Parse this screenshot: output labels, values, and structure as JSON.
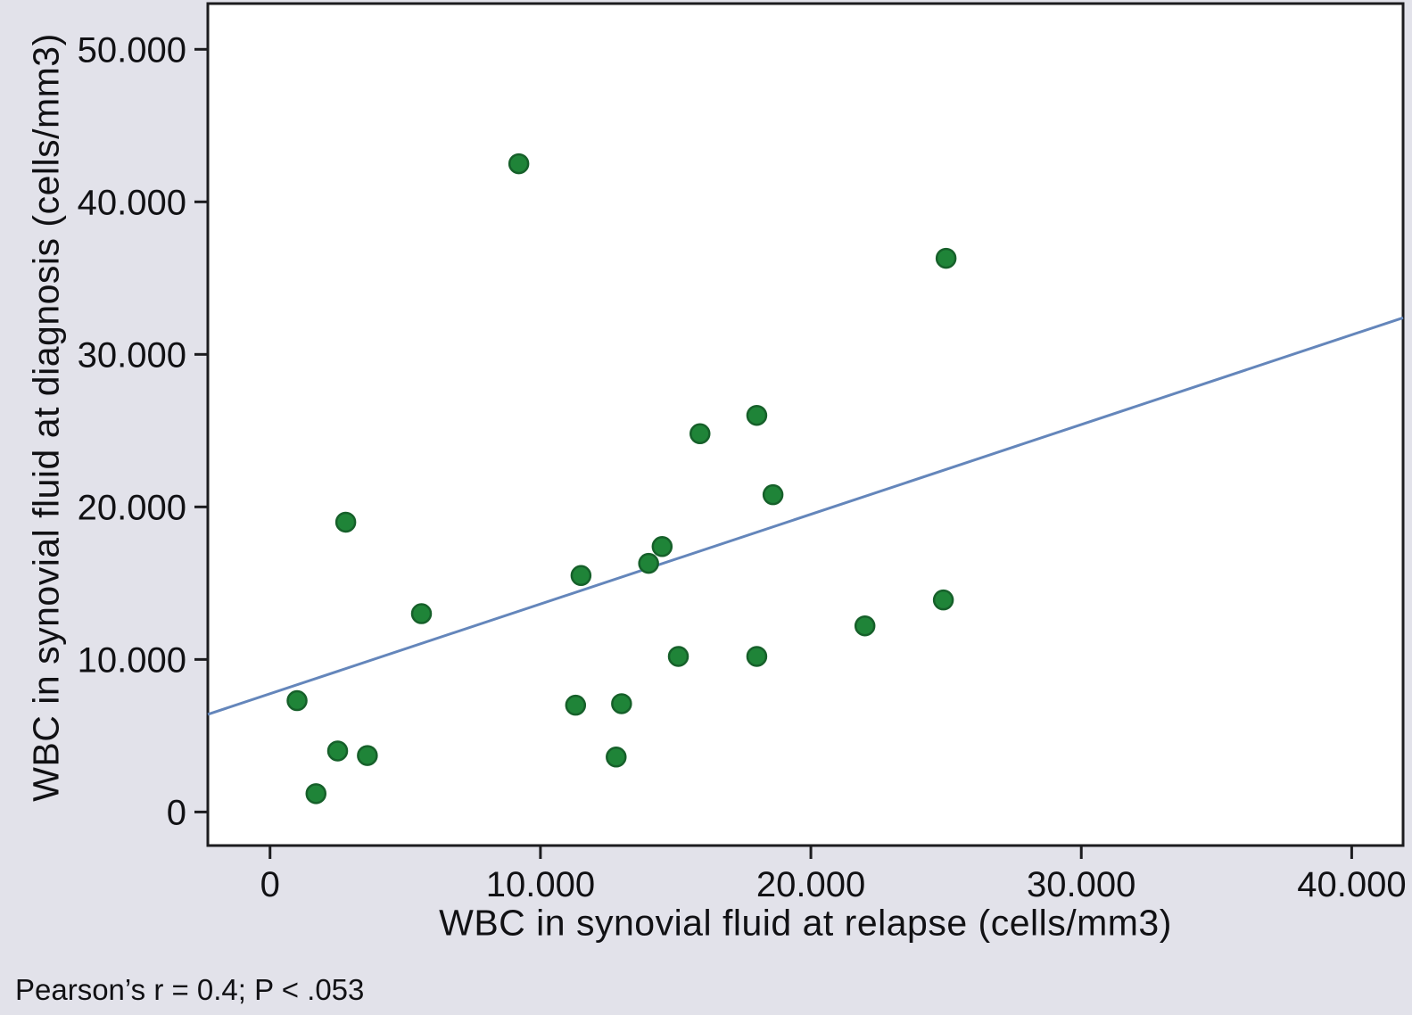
{
  "figure": {
    "background_color": "#e2e2ea",
    "plot_background_color": "#ffffff",
    "border_color": "#1c1c1f",
    "text_color": "#111114"
  },
  "chart_data": {
    "type": "scatter",
    "title": "",
    "xlabel": "WBC in synovial fluid at relapse (cells/mm3)",
    "ylabel": "WBC in synovial fluid at diagnosis (cells/mm3)",
    "annotation": "Pearson’s r = 0.4; P < .053",
    "grid": false,
    "legend_position": "none",
    "xlim": [
      -2300,
      41900
    ],
    "ylim": [
      -2200,
      53000
    ],
    "x_ticks": [
      {
        "value": 0,
        "label": "0"
      },
      {
        "value": 10000,
        "label": "10.000"
      },
      {
        "value": 20000,
        "label": "20.000"
      },
      {
        "value": 30000,
        "label": "30.000"
      },
      {
        "value": 40000,
        "label": "40.000"
      }
    ],
    "y_ticks": [
      {
        "value": 0,
        "label": "0"
      },
      {
        "value": 10000,
        "label": "10.000"
      },
      {
        "value": 20000,
        "label": "20.000"
      },
      {
        "value": 30000,
        "label": "30.000"
      },
      {
        "value": 40000,
        "label": "40.000"
      },
      {
        "value": 50000,
        "label": "50.000"
      }
    ],
    "points": [
      {
        "x": 9200,
        "y": 42500
      },
      {
        "x": 25000,
        "y": 36300
      },
      {
        "x": 18000,
        "y": 26000
      },
      {
        "x": 15900,
        "y": 24800
      },
      {
        "x": 18600,
        "y": 20800
      },
      {
        "x": 2800,
        "y": 19000
      },
      {
        "x": 14500,
        "y": 17400
      },
      {
        "x": 14000,
        "y": 16300
      },
      {
        "x": 11500,
        "y": 15500
      },
      {
        "x": 24900,
        "y": 13900
      },
      {
        "x": 5600,
        "y": 13000
      },
      {
        "x": 22000,
        "y": 12200
      },
      {
        "x": 15100,
        "y": 10200
      },
      {
        "x": 18000,
        "y": 10200
      },
      {
        "x": 1000,
        "y": 7300
      },
      {
        "x": 13000,
        "y": 7100
      },
      {
        "x": 11300,
        "y": 7000
      },
      {
        "x": 2500,
        "y": 4000
      },
      {
        "x": 3600,
        "y": 3700
      },
      {
        "x": 12800,
        "y": 3600
      },
      {
        "x": 1700,
        "y": 1200
      }
    ],
    "trend_line": {
      "x1": -2300,
      "y1": 6400,
      "x2": 41900,
      "y2": 32400
    },
    "point_color": "#1f8438",
    "point_edge_color": "#16602a",
    "trend_line_color": "#6486bb"
  }
}
